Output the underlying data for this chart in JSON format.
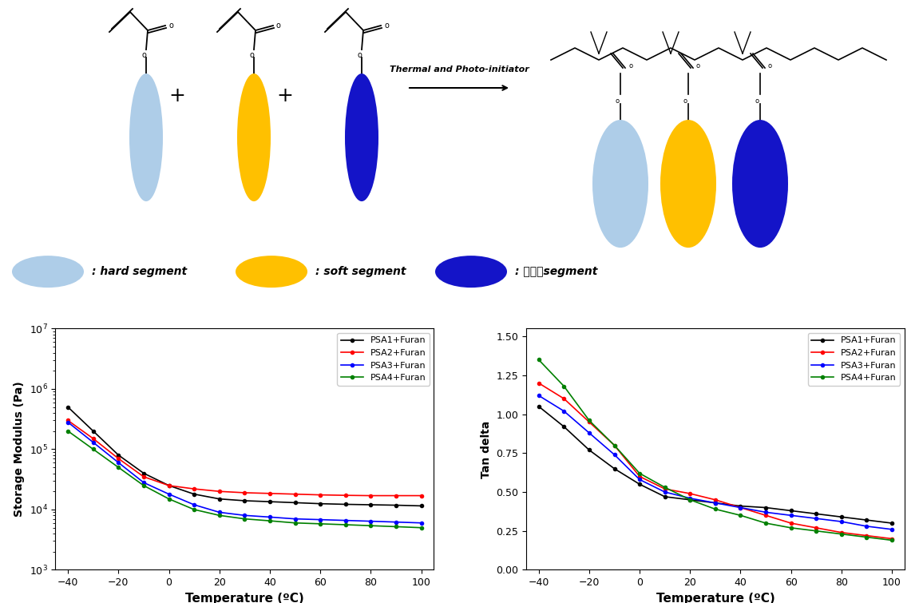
{
  "legend_labels": [
    "PSA1+Furan",
    "PSA2+Furan",
    "PSA3+Furan",
    "PSA4+Furan"
  ],
  "line_colors": [
    "black",
    "red",
    "blue",
    "green"
  ],
  "temp_points": [
    -40,
    -30,
    -20,
    -10,
    0,
    10,
    20,
    30,
    40,
    50,
    60,
    70,
    80,
    90,
    100
  ],
  "storage_modulus": {
    "PSA1": [
      500000,
      200000,
      80000,
      40000,
      25000,
      18000,
      15000,
      14000,
      13500,
      13000,
      12500,
      12200,
      12000,
      11800,
      11500
    ],
    "PSA2": [
      300000,
      150000,
      70000,
      35000,
      25000,
      22000,
      20000,
      19000,
      18500,
      18000,
      17500,
      17200,
      17000,
      17000,
      17000
    ],
    "PSA3": [
      280000,
      130000,
      60000,
      28000,
      18000,
      12000,
      9000,
      8000,
      7500,
      7000,
      6800,
      6600,
      6400,
      6200,
      6000
    ],
    "PSA4": [
      200000,
      100000,
      50000,
      25000,
      15000,
      10000,
      8000,
      7000,
      6500,
      6000,
      5800,
      5600,
      5400,
      5200,
      5000
    ]
  },
  "storage_ylabel": "Storage Modulus (Pa)",
  "storage_xlabel": "Temperature (ºC)",
  "storage_ylim": [
    1000,
    10000000
  ],
  "tan_delta": {
    "PSA1": [
      1.05,
      0.92,
      0.77,
      0.65,
      0.55,
      0.47,
      0.45,
      0.43,
      0.41,
      0.4,
      0.38,
      0.36,
      0.34,
      0.32,
      0.3
    ],
    "PSA2": [
      1.2,
      1.1,
      0.95,
      0.8,
      0.6,
      0.52,
      0.49,
      0.45,
      0.4,
      0.35,
      0.3,
      0.27,
      0.24,
      0.22,
      0.2
    ],
    "PSA3": [
      1.12,
      1.02,
      0.88,
      0.74,
      0.58,
      0.5,
      0.46,
      0.43,
      0.4,
      0.37,
      0.35,
      0.33,
      0.31,
      0.28,
      0.26
    ],
    "PSA4": [
      1.35,
      1.18,
      0.96,
      0.8,
      0.62,
      0.53,
      0.45,
      0.39,
      0.35,
      0.3,
      0.27,
      0.25,
      0.23,
      0.21,
      0.19
    ]
  },
  "tan_ylabel": "Tan delta",
  "tan_xlabel": "Temperature (ºC)",
  "tan_ylim": [
    0.0,
    1.55
  ],
  "tan_yticks": [
    0.0,
    0.25,
    0.5,
    0.75,
    1.0,
    1.25,
    1.5
  ],
  "ellipse_light_blue": "#AECDE8",
  "ellipse_gold": "#FFC000",
  "ellipse_dark_blue": "#1414C8",
  "arrow_text": "Thermal and Photo-initiator",
  "legend1_text": ": hard segment",
  "legend2_text": ": soft segment",
  "legend3_text": ": 상용성segment"
}
